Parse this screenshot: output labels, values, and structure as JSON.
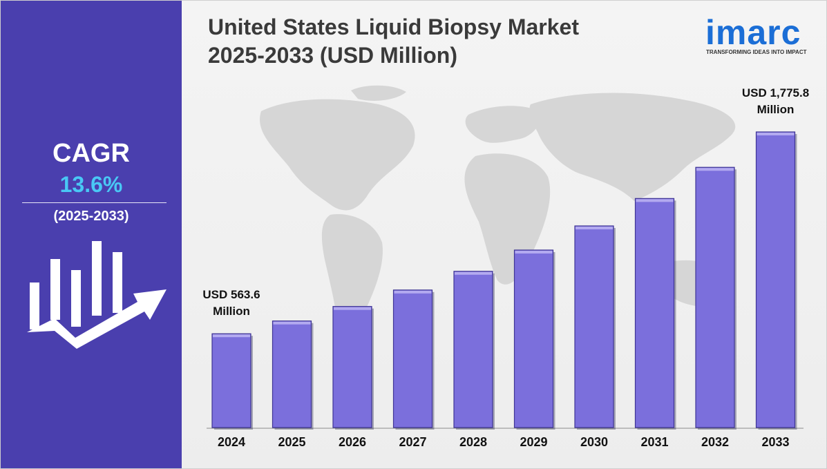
{
  "title_line1": "United States Liquid Biopsy Market",
  "title_line2": "2025-2033 (USD Million)",
  "cagr": {
    "label": "CAGR",
    "value": "13.6%",
    "period": "(2025-2033)"
  },
  "logo": {
    "word": "imarc",
    "tagline": "TRANSFORMING IDEAS INTO IMPACT"
  },
  "icons": {
    "growth": "growth-chart-arrow-icon",
    "map": "world-map-icon"
  },
  "colors": {
    "left_panel": "#4a3fae",
    "cagr_value": "#49c8f5",
    "bar_fill": "#7b6fdc",
    "bar_top": "#b3aaf0",
    "logo": "#1b6ed6"
  },
  "chart_data": {
    "type": "bar",
    "title": "United States Liquid Biopsy Market 2025-2033 (USD Million)",
    "xlabel": "",
    "ylabel": "",
    "categories": [
      "2024",
      "2025",
      "2026",
      "2027",
      "2028",
      "2029",
      "2030",
      "2031",
      "2032",
      "2033"
    ],
    "series": [
      {
        "values": [
          563.6,
          640.3,
          727.4,
          826.3,
          938.7,
          1066.3,
          1211.3,
          1376.0,
          1563.2,
          1775.8
        ]
      }
    ],
    "ylim": [
      0,
      1775.8
    ],
    "grid": false,
    "annotations": [
      {
        "category": "2024",
        "line1": "USD 563.6",
        "line2": "Million"
      },
      {
        "category": "2033",
        "line1": "USD 1,775.8",
        "line2": "Million"
      }
    ]
  }
}
